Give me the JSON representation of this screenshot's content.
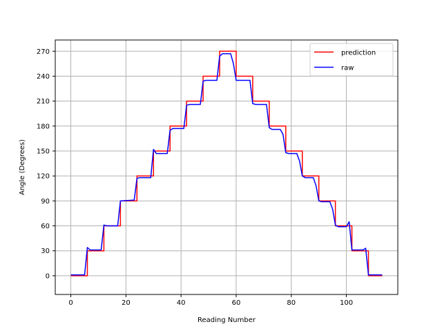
{
  "chart_data": {
    "type": "line",
    "xlabel": "Reading Number",
    "ylabel": "Angle (Degrees)",
    "xlim": [
      -5.65,
      118.65
    ],
    "ylim": [
      -22.5,
      283.5
    ],
    "xticks": [
      0,
      20,
      40,
      60,
      80,
      100
    ],
    "yticks": [
      0,
      30,
      60,
      90,
      120,
      150,
      180,
      210,
      240,
      270
    ],
    "grid": true,
    "legend_position": "top-right",
    "series": [
      {
        "name": "prediction",
        "color": "#ff0000",
        "step": "post",
        "points": [
          [
            0,
            0
          ],
          [
            6,
            30
          ],
          [
            12,
            60
          ],
          [
            18,
            90
          ],
          [
            24,
            120
          ],
          [
            30,
            150
          ],
          [
            36,
            180
          ],
          [
            42,
            210
          ],
          [
            48,
            240
          ],
          [
            54,
            270
          ],
          [
            60,
            240
          ],
          [
            66,
            210
          ],
          [
            72,
            180
          ],
          [
            78,
            150
          ],
          [
            84,
            120
          ],
          [
            90,
            90
          ],
          [
            96,
            60
          ],
          [
            102,
            30
          ],
          [
            108,
            0
          ],
          [
            113,
            0
          ]
        ]
      },
      {
        "name": "raw",
        "color": "#0000ff",
        "step": "none",
        "points": [
          [
            0,
            1
          ],
          [
            5,
            1
          ],
          [
            6,
            34
          ],
          [
            7,
            31
          ],
          [
            11,
            31
          ],
          [
            12,
            61
          ],
          [
            13,
            60
          ],
          [
            17,
            60
          ],
          [
            18,
            90
          ],
          [
            23,
            91
          ],
          [
            24,
            117
          ],
          [
            25,
            118
          ],
          [
            29,
            118
          ],
          [
            30,
            152
          ],
          [
            31,
            147
          ],
          [
            35,
            147
          ],
          [
            36,
            175
          ],
          [
            37,
            177
          ],
          [
            41,
            177
          ],
          [
            42,
            205
          ],
          [
            43,
            206
          ],
          [
            47,
            206
          ],
          [
            48,
            234
          ],
          [
            49,
            235
          ],
          [
            53,
            235
          ],
          [
            54,
            264
          ],
          [
            55,
            267
          ],
          [
            58,
            267
          ],
          [
            59,
            255
          ],
          [
            60,
            235
          ],
          [
            65,
            235
          ],
          [
            66,
            207
          ],
          [
            67,
            206
          ],
          [
            71,
            206
          ],
          [
            72,
            178
          ],
          [
            73,
            176
          ],
          [
            76,
            176
          ],
          [
            77,
            170
          ],
          [
            78,
            148
          ],
          [
            79,
            147
          ],
          [
            82,
            147
          ],
          [
            83,
            138
          ],
          [
            84,
            120
          ],
          [
            85,
            118
          ],
          [
            88,
            118
          ],
          [
            89,
            108
          ],
          [
            90,
            90
          ],
          [
            91,
            89
          ],
          [
            94,
            89
          ],
          [
            95,
            80
          ],
          [
            96,
            61
          ],
          [
            97,
            59
          ],
          [
            100,
            59
          ],
          [
            101,
            65
          ],
          [
            102,
            31
          ],
          [
            103,
            31
          ],
          [
            106,
            31
          ],
          [
            107,
            33
          ],
          [
            108,
            1
          ],
          [
            113,
            1
          ]
        ]
      }
    ]
  }
}
